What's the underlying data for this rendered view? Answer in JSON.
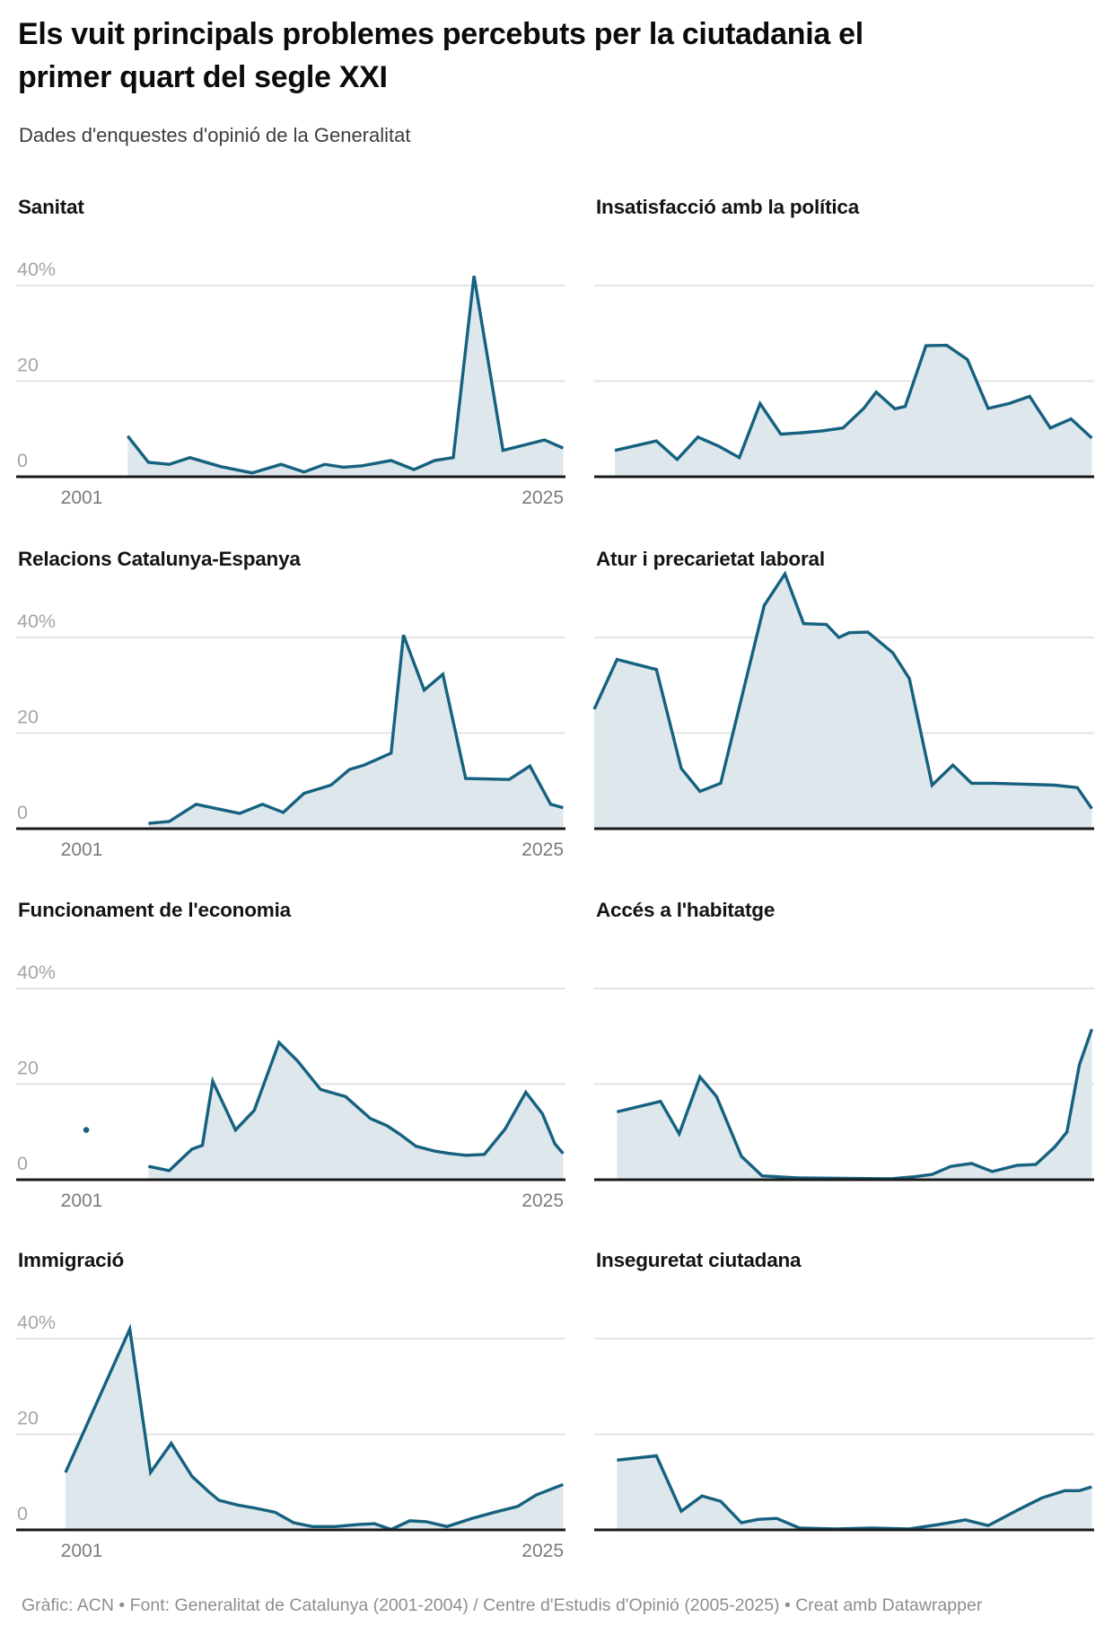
{
  "header": {
    "title": "Els vuit principals problemes percebuts per la ciutadania el\nprimer quart del segle XXI",
    "subtitle": "Dades d'enquestes d'opinió de la Generalitat"
  },
  "footer": {
    "text": "Gràfic: ACN • Font: Generalitat de Catalunya (2001-2004) / Centre d'Estudis d'Opinió (2005-2025) • Creat amb Datawrapper"
  },
  "colors": {
    "line": "#15617f",
    "fill": "#dde7ec",
    "grid": "#e3e3e3",
    "axis": "#1a1a1a",
    "y_tick_text": "#a6a6a6",
    "x_tick_text": "#7c7c7c"
  },
  "axes": {
    "x_start_label": "2001",
    "x_end_label": "2025",
    "x_domain": [
      2001,
      2025
    ],
    "ylim": [
      0,
      55
    ],
    "y_gridlines": [
      20,
      40
    ],
    "y_ticks": [
      "40%",
      "20",
      "0"
    ],
    "unit": "%",
    "grid": "horizontal-only",
    "legend": "none"
  },
  "chart_data": [
    {
      "type": "area",
      "title": "Sanitat",
      "column": "left",
      "show_x_labels": true,
      "show_y_labels": true,
      "points": [
        [
          2004,
          8.5
        ],
        [
          2005,
          3
        ],
        [
          2006,
          2.6
        ],
        [
          2007,
          4
        ],
        [
          2008.5,
          2.1
        ],
        [
          2010,
          0.8
        ],
        [
          2011.4,
          2.6
        ],
        [
          2012.5,
          1
        ],
        [
          2013.5,
          2.6
        ],
        [
          2014.4,
          2
        ],
        [
          2015.3,
          2.3
        ],
        [
          2016.7,
          3.4
        ],
        [
          2017.8,
          1.5
        ],
        [
          2018.8,
          3.4
        ],
        [
          2019.7,
          4
        ],
        [
          2020.7,
          42
        ],
        [
          2022.1,
          5.5
        ],
        [
          2024.1,
          7.7
        ],
        [
          2025,
          6
        ]
      ]
    },
    {
      "type": "area",
      "title": "Insatisfacció amb la política",
      "column": "right",
      "show_x_labels": false,
      "show_y_labels": false,
      "points": [
        [
          2002,
          5.5
        ],
        [
          2004,
          7.5
        ],
        [
          2005,
          3.6
        ],
        [
          2006,
          8.3
        ],
        [
          2007,
          6.4
        ],
        [
          2008,
          4
        ],
        [
          2009,
          15.3
        ],
        [
          2010,
          8.9
        ],
        [
          2011,
          9.2
        ],
        [
          2012,
          9.6
        ],
        [
          2013,
          10.2
        ],
        [
          2014,
          14.3
        ],
        [
          2014.6,
          17.7
        ],
        [
          2015.5,
          14.2
        ],
        [
          2016,
          14.7
        ],
        [
          2017,
          27.4
        ],
        [
          2018,
          27.5
        ],
        [
          2019,
          24.5
        ],
        [
          2020,
          14.3
        ],
        [
          2021,
          15.3
        ],
        [
          2022,
          16.8
        ],
        [
          2023,
          10.2
        ],
        [
          2024,
          12.1
        ],
        [
          2025,
          8.1
        ]
      ]
    },
    {
      "type": "area",
      "title": "Relacions Catalunya-Espanya",
      "column": "left",
      "show_x_labels": true,
      "show_y_labels": true,
      "points": [
        [
          2005,
          1.1
        ],
        [
          2006,
          1.5
        ],
        [
          2007.3,
          5.1
        ],
        [
          2009.4,
          3.2
        ],
        [
          2010.5,
          5.1
        ],
        [
          2011.5,
          3.4
        ],
        [
          2012.5,
          7.4
        ],
        [
          2013.8,
          9.1
        ],
        [
          2014.7,
          12.4
        ],
        [
          2015.4,
          13.3
        ],
        [
          2016.7,
          15.8
        ],
        [
          2017.3,
          40.5
        ],
        [
          2018.3,
          29
        ],
        [
          2019.2,
          32.3
        ],
        [
          2020.3,
          10.5
        ],
        [
          2022.4,
          10.3
        ],
        [
          2023.4,
          13.1
        ],
        [
          2024.4,
          5.1
        ],
        [
          2025,
          4.4
        ]
      ]
    },
    {
      "type": "area",
      "title": "Atur i precarietat laboral",
      "column": "right",
      "show_x_labels": false,
      "show_y_labels": false,
      "points": [
        [
          2001,
          25
        ],
        [
          2002.1,
          35.4
        ],
        [
          2004,
          33.3
        ],
        [
          2005.2,
          12.6
        ],
        [
          2006.1,
          7.8
        ],
        [
          2007.1,
          9.5
        ],
        [
          2009.2,
          46.7
        ],
        [
          2010.2,
          53.3
        ],
        [
          2011.1,
          42.9
        ],
        [
          2012.2,
          42.7
        ],
        [
          2012.8,
          40
        ],
        [
          2013.3,
          41
        ],
        [
          2014.2,
          41.1
        ],
        [
          2015.4,
          36.8
        ],
        [
          2016.2,
          31.4
        ],
        [
          2017.3,
          9.1
        ],
        [
          2018.3,
          13.3
        ],
        [
          2019.2,
          9.5
        ],
        [
          2020.3,
          9.5
        ],
        [
          2023.2,
          9.1
        ],
        [
          2024.3,
          8.6
        ],
        [
          2025,
          4.2
        ]
      ]
    },
    {
      "type": "area",
      "title": "Funcionament de l'economia",
      "column": "left",
      "show_x_labels": true,
      "show_y_labels": true,
      "isolated_points": [
        [
          2002,
          10.4
        ]
      ],
      "points": [
        [
          2005,
          2.8
        ],
        [
          2006,
          1.9
        ],
        [
          2007.1,
          6.4
        ],
        [
          2007.6,
          7.2
        ],
        [
          2008.1,
          20.6
        ],
        [
          2009.2,
          10.4
        ],
        [
          2010.1,
          14.5
        ],
        [
          2011.3,
          28.7
        ],
        [
          2012.2,
          24.8
        ],
        [
          2013.3,
          18.9
        ],
        [
          2014.1,
          17.9
        ],
        [
          2014.5,
          17.4
        ],
        [
          2015.7,
          12.8
        ],
        [
          2016.5,
          11.3
        ],
        [
          2017.1,
          9.6
        ],
        [
          2017.9,
          7
        ],
        [
          2018.8,
          6
        ],
        [
          2019.5,
          5.5
        ],
        [
          2020.3,
          5.1
        ],
        [
          2021.2,
          5.3
        ],
        [
          2022.2,
          10.6
        ],
        [
          2023.2,
          18.3
        ],
        [
          2024,
          13.8
        ],
        [
          2024.6,
          7.5
        ],
        [
          2025,
          5.5
        ]
      ]
    },
    {
      "type": "area",
      "title": "Accés a l'habitatge",
      "column": "right",
      "show_x_labels": false,
      "show_y_labels": false,
      "points": [
        [
          2002.1,
          14.2
        ],
        [
          2004.2,
          16.4
        ],
        [
          2005.1,
          9.6
        ],
        [
          2006.1,
          21.5
        ],
        [
          2006.9,
          17.4
        ],
        [
          2008.1,
          4.9
        ],
        [
          2009.1,
          0.8
        ],
        [
          2010.8,
          0.4
        ],
        [
          2015.3,
          0.2
        ],
        [
          2016.4,
          0.6
        ],
        [
          2017.3,
          1.1
        ],
        [
          2018.2,
          2.8
        ],
        [
          2019.2,
          3.4
        ],
        [
          2020.2,
          1.7
        ],
        [
          2021.4,
          3
        ],
        [
          2022.3,
          3.2
        ],
        [
          2023.2,
          6.8
        ],
        [
          2023.8,
          10
        ],
        [
          2024.4,
          24
        ],
        [
          2025,
          31.5
        ]
      ]
    },
    {
      "type": "area",
      "title": "Immigració",
      "column": "left",
      "show_x_labels": true,
      "show_y_labels": true,
      "points": [
        [
          2001,
          12
        ],
        [
          2004.1,
          42
        ],
        [
          2005.1,
          12
        ],
        [
          2006.1,
          18.1
        ],
        [
          2007.1,
          11.2
        ],
        [
          2007.9,
          8
        ],
        [
          2008.4,
          6.2
        ],
        [
          2009.3,
          5.2
        ],
        [
          2010.2,
          4.5
        ],
        [
          2011.1,
          3.7
        ],
        [
          2012,
          1.5
        ],
        [
          2012.9,
          0.7
        ],
        [
          2014,
          0.7
        ],
        [
          2015.1,
          1.1
        ],
        [
          2015.9,
          1.3
        ],
        [
          2016.7,
          0.1
        ],
        [
          2017.6,
          1.9
        ],
        [
          2018.4,
          1.7
        ],
        [
          2019.4,
          0.7
        ],
        [
          2020.6,
          2.4
        ],
        [
          2021.7,
          3.7
        ],
        [
          2022.8,
          4.9
        ],
        [
          2023.7,
          7.3
        ],
        [
          2025,
          9.5
        ]
      ]
    },
    {
      "type": "area",
      "title": "Inseguretat ciutadana",
      "column": "right",
      "show_x_labels": false,
      "show_y_labels": false,
      "points": [
        [
          2002.1,
          14.6
        ],
        [
          2004,
          15.5
        ],
        [
          2005.2,
          3.9
        ],
        [
          2006.2,
          7.1
        ],
        [
          2007.1,
          6
        ],
        [
          2008.1,
          1.5
        ],
        [
          2008.9,
          2.2
        ],
        [
          2009.8,
          2.4
        ],
        [
          2010.9,
          0.4
        ],
        [
          2012.6,
          0.2
        ],
        [
          2014.4,
          0.4
        ],
        [
          2016.2,
          0.2
        ],
        [
          2017.6,
          1.1
        ],
        [
          2018.9,
          2.1
        ],
        [
          2020,
          0.9
        ],
        [
          2021.4,
          4.1
        ],
        [
          2022.6,
          6.7
        ],
        [
          2023.7,
          8.2
        ],
        [
          2024.4,
          8.2
        ],
        [
          2025,
          9
        ]
      ]
    }
  ]
}
